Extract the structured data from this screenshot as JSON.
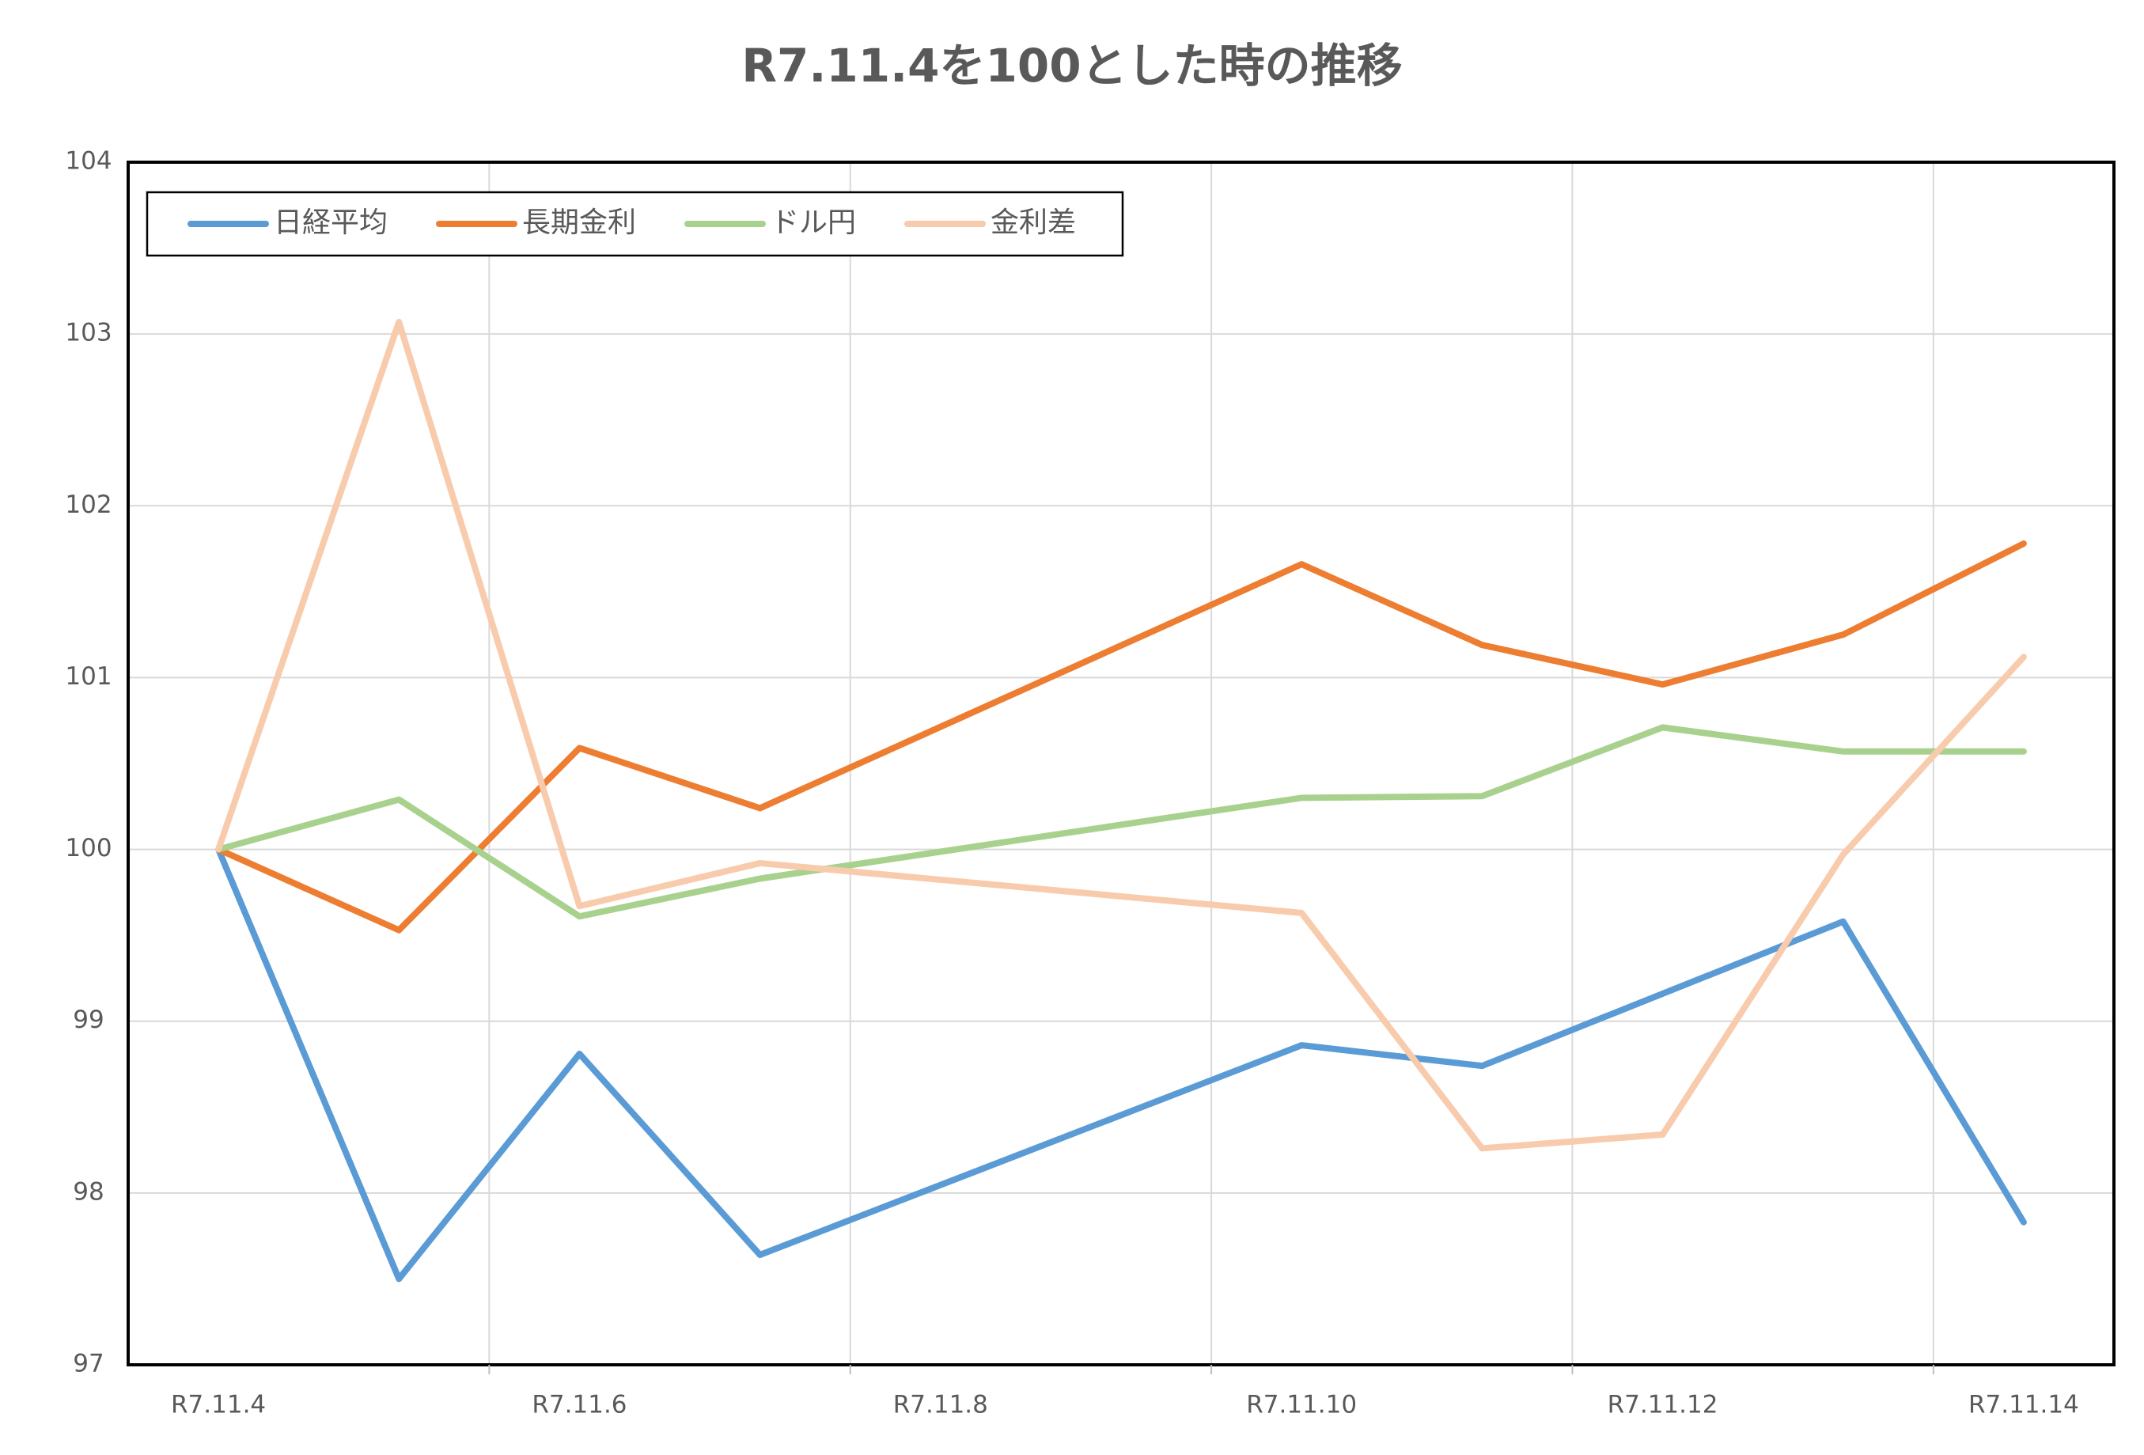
{
  "chart_data": {
    "type": "line",
    "title": "R7.11.4を100とした時の推移",
    "x": [
      4,
      5,
      6,
      7,
      10,
      11,
      12,
      13,
      14
    ],
    "xlim": [
      3.5,
      14.5
    ],
    "xticks": [
      {
        "value": 4,
        "label": "R7.11.4"
      },
      {
        "value": 6,
        "label": "R7.11.6"
      },
      {
        "value": 8,
        "label": "R7.11.8"
      },
      {
        "value": 10,
        "label": "R7.11.10"
      },
      {
        "value": 12,
        "label": "R7.11.12"
      },
      {
        "value": 14,
        "label": "R7.11.14"
      }
    ],
    "ylim": [
      97,
      104
    ],
    "yticks": [
      97,
      98,
      99,
      100,
      101,
      102,
      103,
      104
    ],
    "grid": true,
    "legend": "upper left",
    "series": [
      {
        "name": "日経平均",
        "color": "#5b9bd5",
        "values": [
          100,
          97.5,
          98.81,
          97.64,
          98.86,
          98.74,
          99.16,
          99.58,
          97.83
        ]
      },
      {
        "name": "長期金利",
        "color": "#ed7d31",
        "values": [
          100,
          99.53,
          100.59,
          100.24,
          101.66,
          101.19,
          100.96,
          101.25,
          101.78
        ]
      },
      {
        "name": "ドル円",
        "color": "#a9d18e",
        "values": [
          100,
          100.29,
          99.61,
          99.83,
          100.3,
          100.31,
          100.71,
          100.57,
          100.57
        ]
      },
      {
        "name": "金利差",
        "color": "#f8cbad",
        "values": [
          100,
          103.07,
          99.67,
          99.92,
          99.63,
          98.26,
          98.34,
          99.97,
          101.12
        ]
      }
    ]
  }
}
